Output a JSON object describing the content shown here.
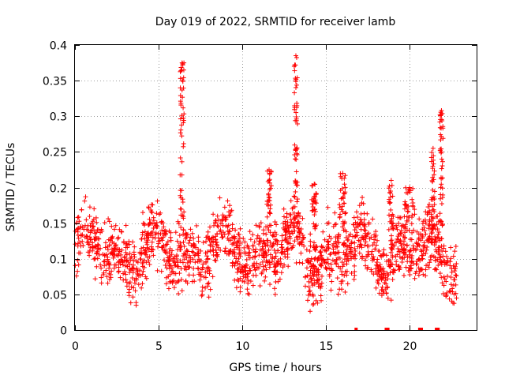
{
  "chart_data": {
    "type": "scatter",
    "title": "Day 019 of 2022, SRMTID for receiver lamb",
    "xlabel": "GPS time / hours",
    "ylabel": "SRMTID / TECUs",
    "xlim": [
      0,
      24
    ],
    "ylim": [
      0,
      0.4
    ],
    "xticks": [
      0,
      5,
      10,
      15,
      20
    ],
    "yticks": [
      0,
      0.05,
      0.1,
      0.15,
      0.2,
      0.25,
      0.3,
      0.35,
      0.4
    ],
    "xtick_labels": [
      "0",
      "5",
      "10",
      "15",
      "20"
    ],
    "ytick_labels": [
      "0",
      "0.05",
      "0.1",
      "0.15",
      "0.2",
      "0.25",
      "0.3",
      "0.35",
      "0.4"
    ],
    "grid": true,
    "marker": "+",
    "color": "#ff0000",
    "baseline": {
      "min": 0.075,
      "max": 0.145
    },
    "zero_points_x": [
      16.8,
      18.6,
      18.7,
      20.6,
      20.7,
      21.6,
      21.7
    ],
    "spikes": [
      {
        "x": 6.4,
        "peak": 0.375,
        "width": 0.25
      },
      {
        "x": 13.2,
        "peak": 0.385,
        "width": 0.2
      },
      {
        "x": 21.9,
        "peak": 0.308,
        "width": 0.2
      },
      {
        "x": 21.4,
        "peak": 0.255,
        "width": 0.2
      },
      {
        "x": 11.6,
        "peak": 0.225,
        "width": 0.3
      },
      {
        "x": 14.3,
        "peak": 0.205,
        "width": 0.3
      },
      {
        "x": 16.0,
        "peak": 0.22,
        "width": 0.4
      },
      {
        "x": 18.9,
        "peak": 0.21,
        "width": 0.3
      },
      {
        "x": 20.0,
        "peak": 0.2,
        "width": 0.6
      }
    ],
    "n_points": 1800
  }
}
